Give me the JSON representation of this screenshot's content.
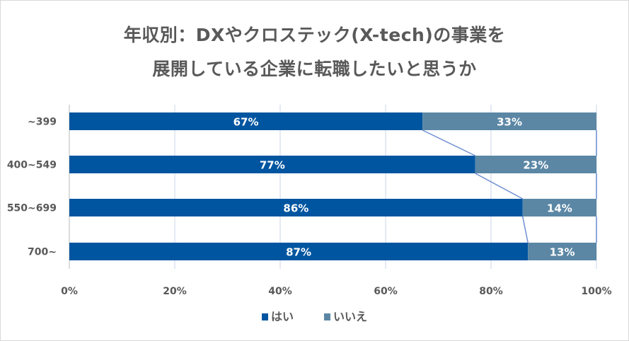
{
  "chart_data": {
    "type": "bar",
    "orientation": "horizontal",
    "stacked": "percent",
    "title": [
      "年収別：DXやクロステック(X-tech)の事業を",
      "展開している企業に転職したいと思うか"
    ],
    "categories": [
      "~399",
      "400~549",
      "550~699",
      "700~"
    ],
    "series": [
      {
        "name": "はい",
        "color": "#0055a0",
        "values": [
          67,
          77,
          86,
          87
        ],
        "labels": [
          "67%",
          "77%",
          "86%",
          "87%"
        ]
      },
      {
        "name": "いいえ",
        "color": "#5b87a5",
        "values": [
          33,
          23,
          14,
          13
        ],
        "labels": [
          "33%",
          "23%",
          "14%",
          "13%"
        ]
      }
    ],
    "xlabel": "",
    "ylabel": "",
    "xlim": [
      0,
      100
    ],
    "xticks": [
      "0%",
      "20%",
      "40%",
      "60%",
      "80%",
      "100%"
    ],
    "grid": true,
    "series_lines": true,
    "series_line_color": "#6f8fd0",
    "legend": "bottom"
  }
}
